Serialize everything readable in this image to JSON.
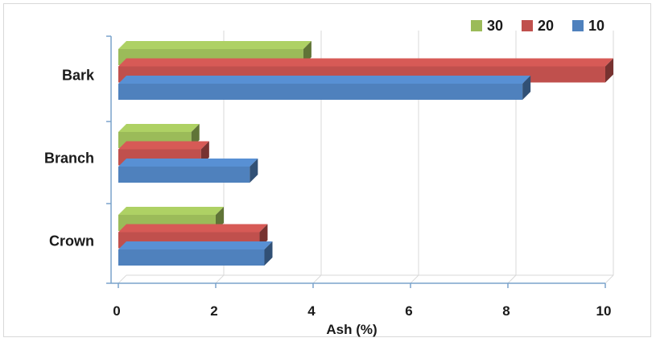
{
  "chart_data": {
    "type": "bar",
    "orientation": "horizontal",
    "categories": [
      "Bark",
      "Branch",
      "Crown"
    ],
    "series": [
      {
        "name": "30",
        "color": "#9bbb59",
        "values": [
          3.8,
          1.5,
          2.0
        ]
      },
      {
        "name": "20",
        "color": "#c0504d",
        "values": [
          10.0,
          1.7,
          2.9
        ]
      },
      {
        "name": "10",
        "color": "#4f81bd",
        "values": [
          8.3,
          2.7,
          3.0
        ]
      }
    ],
    "xlabel": "Ash (%)",
    "ylabel": "",
    "xlim": [
      0,
      10
    ],
    "xticks": [
      0,
      2,
      4,
      6,
      8,
      10
    ],
    "grid": true,
    "legend_position": "top-right",
    "style": "3d"
  }
}
